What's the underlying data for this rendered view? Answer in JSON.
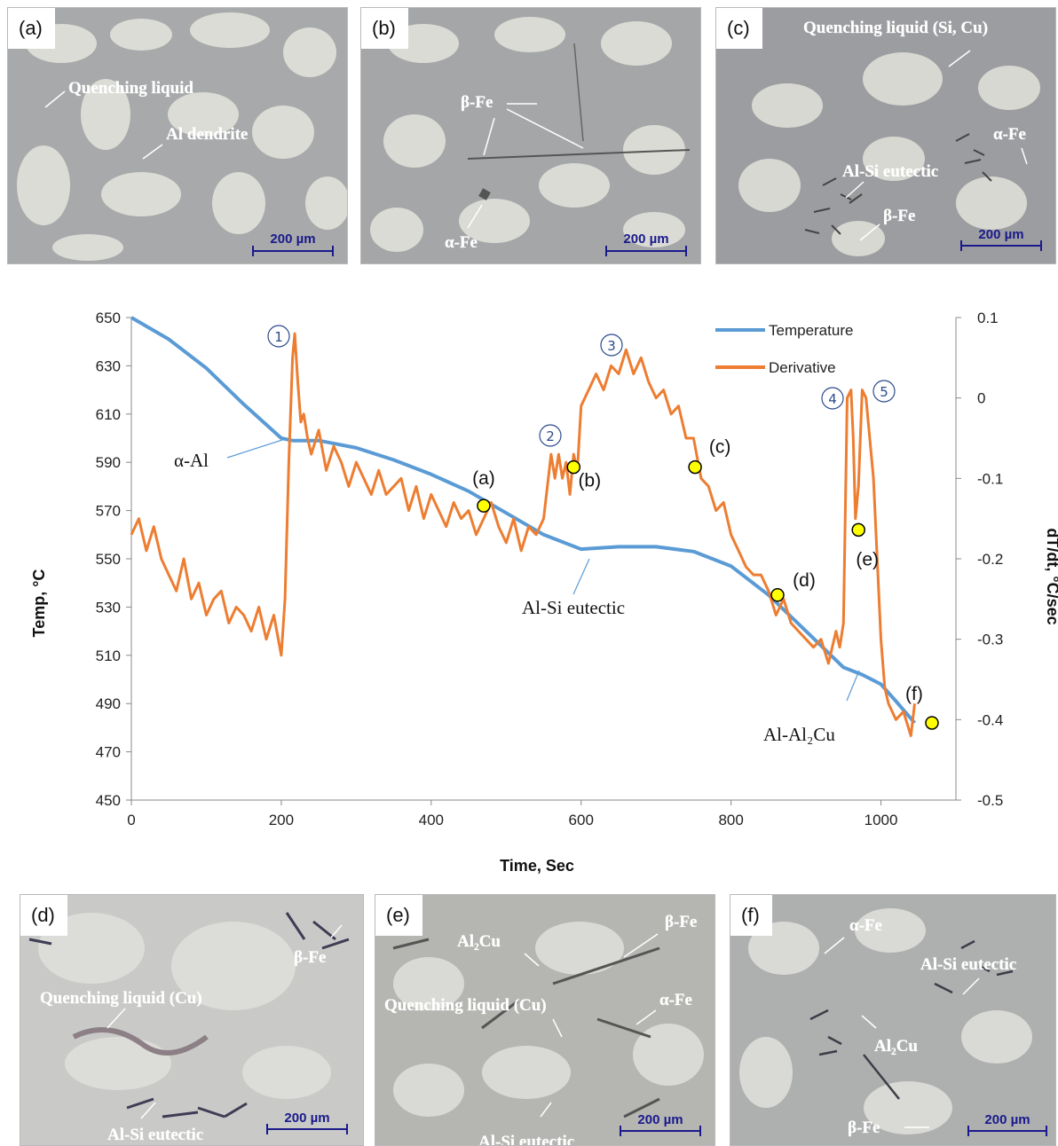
{
  "micrographs": {
    "a": {
      "label": "(a)",
      "scale": "200 µm",
      "annotations": [
        "Quenching liquid",
        "Al dendrite"
      ]
    },
    "b": {
      "label": "(b)",
      "scale": "200 µm",
      "annotations": [
        "β-Fe",
        "α-Fe"
      ]
    },
    "c": {
      "label": "(c)",
      "scale": "200 µm",
      "annotations": [
        "Quenching liquid (Si, Cu)",
        "α-Fe",
        "Al-Si eutectic",
        "β-Fe"
      ]
    },
    "d": {
      "label": "(d)",
      "scale": "200 µm",
      "annotations": [
        "β-Fe",
        "Quenching liquid (Cu)",
        "Al-Si eutectic"
      ]
    },
    "e": {
      "label": "(e)",
      "scale": "200 µm",
      "annotations": [
        "β-Fe",
        "Al₂Cu",
        "Quenching liquid (Cu)",
        "α-Fe",
        "Al-Si eutectic"
      ]
    },
    "f": {
      "label": "(f)",
      "scale": "200 µm",
      "annotations": [
        "α-Fe",
        "Al-Si eutectic",
        "Al₂Cu",
        "β-Fe"
      ]
    }
  },
  "chart_data": {
    "type": "line",
    "xlabel": "Time, Sec",
    "ylabel": "Temp, °C",
    "y2label": "dT/dt, °C/sec",
    "xlim": [
      0,
      1100
    ],
    "ylim": [
      450,
      650
    ],
    "y2lim": [
      -0.5,
      0.1
    ],
    "xticks": [
      0,
      200,
      400,
      600,
      800,
      1000
    ],
    "yticks": [
      650,
      630,
      610,
      590,
      570,
      550,
      530,
      510,
      490,
      470,
      450
    ],
    "y2ticks": [
      "0.1",
      "0",
      "-0.1",
      "-0.2",
      "-0.3",
      "-0.4",
      "-0.5"
    ],
    "legend": {
      "position": "top-right",
      "entries": [
        "Temperature",
        "Derivative"
      ]
    },
    "colors": {
      "temperature": "#5b9bd5",
      "derivative": "#ed7d31",
      "marker_fill": "#ffff00"
    },
    "series": [
      {
        "name": "Temperature",
        "axis": "left",
        "x": [
          0,
          50,
          100,
          150,
          200,
          215,
          250,
          300,
          350,
          400,
          450,
          500,
          550,
          600,
          650,
          700,
          750,
          800,
          850,
          900,
          950,
          975,
          1000,
          1020,
          1045
        ],
        "y": [
          650,
          641,
          629,
          614,
          600,
          599,
          599,
          596,
          591,
          585,
          578,
          569,
          560,
          554,
          555,
          555,
          553,
          547,
          535,
          520,
          505,
          502,
          498,
          491,
          482
        ]
      },
      {
        "name": "Derivative",
        "axis": "right",
        "x": [
          0,
          10,
          20,
          30,
          40,
          50,
          60,
          70,
          80,
          90,
          100,
          110,
          120,
          130,
          140,
          150,
          160,
          170,
          180,
          190,
          200,
          205,
          210,
          215,
          218,
          222,
          226,
          230,
          235,
          240,
          250,
          260,
          270,
          280,
          290,
          300,
          310,
          320,
          330,
          340,
          350,
          360,
          370,
          380,
          390,
          400,
          410,
          420,
          430,
          440,
          450,
          460,
          470,
          480,
          490,
          500,
          510,
          520,
          530,
          540,
          550,
          560,
          565,
          570,
          575,
          580,
          585,
          590,
          595,
          600,
          610,
          620,
          630,
          640,
          650,
          660,
          670,
          680,
          690,
          700,
          710,
          720,
          730,
          740,
          750,
          760,
          770,
          780,
          790,
          800,
          810,
          820,
          830,
          840,
          850,
          860,
          870,
          880,
          890,
          900,
          910,
          920,
          930,
          940,
          945,
          950,
          955,
          960,
          963,
          966,
          970,
          975,
          980,
          985,
          990,
          995,
          1000,
          1005,
          1010,
          1020,
          1030,
          1040,
          1045
        ],
        "y": [
          -0.17,
          -0.15,
          -0.19,
          -0.16,
          -0.2,
          -0.22,
          -0.24,
          -0.2,
          -0.25,
          -0.23,
          -0.27,
          -0.25,
          -0.24,
          -0.28,
          -0.26,
          -0.27,
          -0.29,
          -0.26,
          -0.3,
          -0.27,
          -0.32,
          -0.25,
          -0.08,
          0.05,
          0.08,
          0.02,
          -0.03,
          -0.02,
          -0.05,
          -0.07,
          -0.04,
          -0.09,
          -0.06,
          -0.08,
          -0.11,
          -0.08,
          -0.1,
          -0.12,
          -0.09,
          -0.12,
          -0.11,
          -0.1,
          -0.14,
          -0.11,
          -0.15,
          -0.12,
          -0.14,
          -0.16,
          -0.13,
          -0.15,
          -0.14,
          -0.17,
          -0.15,
          -0.13,
          -0.16,
          -0.18,
          -0.15,
          -0.19,
          -0.16,
          -0.17,
          -0.15,
          -0.07,
          -0.1,
          -0.07,
          -0.1,
          -0.08,
          -0.12,
          -0.07,
          -0.09,
          -0.01,
          0.01,
          0.03,
          0.01,
          0.04,
          0.03,
          0.06,
          0.03,
          0.05,
          0.02,
          0.0,
          0.01,
          -0.02,
          -0.01,
          -0.05,
          -0.05,
          -0.1,
          -0.11,
          -0.14,
          -0.13,
          -0.17,
          -0.19,
          -0.21,
          -0.22,
          -0.22,
          -0.24,
          -0.27,
          -0.25,
          -0.28,
          -0.29,
          -0.3,
          -0.31,
          -0.3,
          -0.33,
          -0.29,
          -0.31,
          -0.28,
          0.0,
          0.01,
          -0.05,
          -0.15,
          -0.11,
          0.01,
          0.0,
          -0.05,
          -0.1,
          -0.2,
          -0.3,
          -0.36,
          -0.38,
          -0.4,
          -0.39,
          -0.42,
          -0.38
        ]
      }
    ],
    "markers": [
      {
        "label": "(a)",
        "x": 470,
        "y": 572
      },
      {
        "label": "(b)",
        "x": 590,
        "y": 588
      },
      {
        "label": "(c)",
        "x": 752,
        "y": 588
      },
      {
        "label": "(d)",
        "x": 862,
        "y": 535
      },
      {
        "label": "(e)",
        "x": 970,
        "y": 562
      },
      {
        "label": "(f)",
        "x": 1068,
        "y": 482
      }
    ],
    "phase_labels": [
      "α-Al",
      "Al-Si eutectic",
      "Al-Al₂Cu"
    ],
    "circled_numbers": [
      "①",
      "②",
      "③",
      "④",
      "⑤"
    ]
  }
}
